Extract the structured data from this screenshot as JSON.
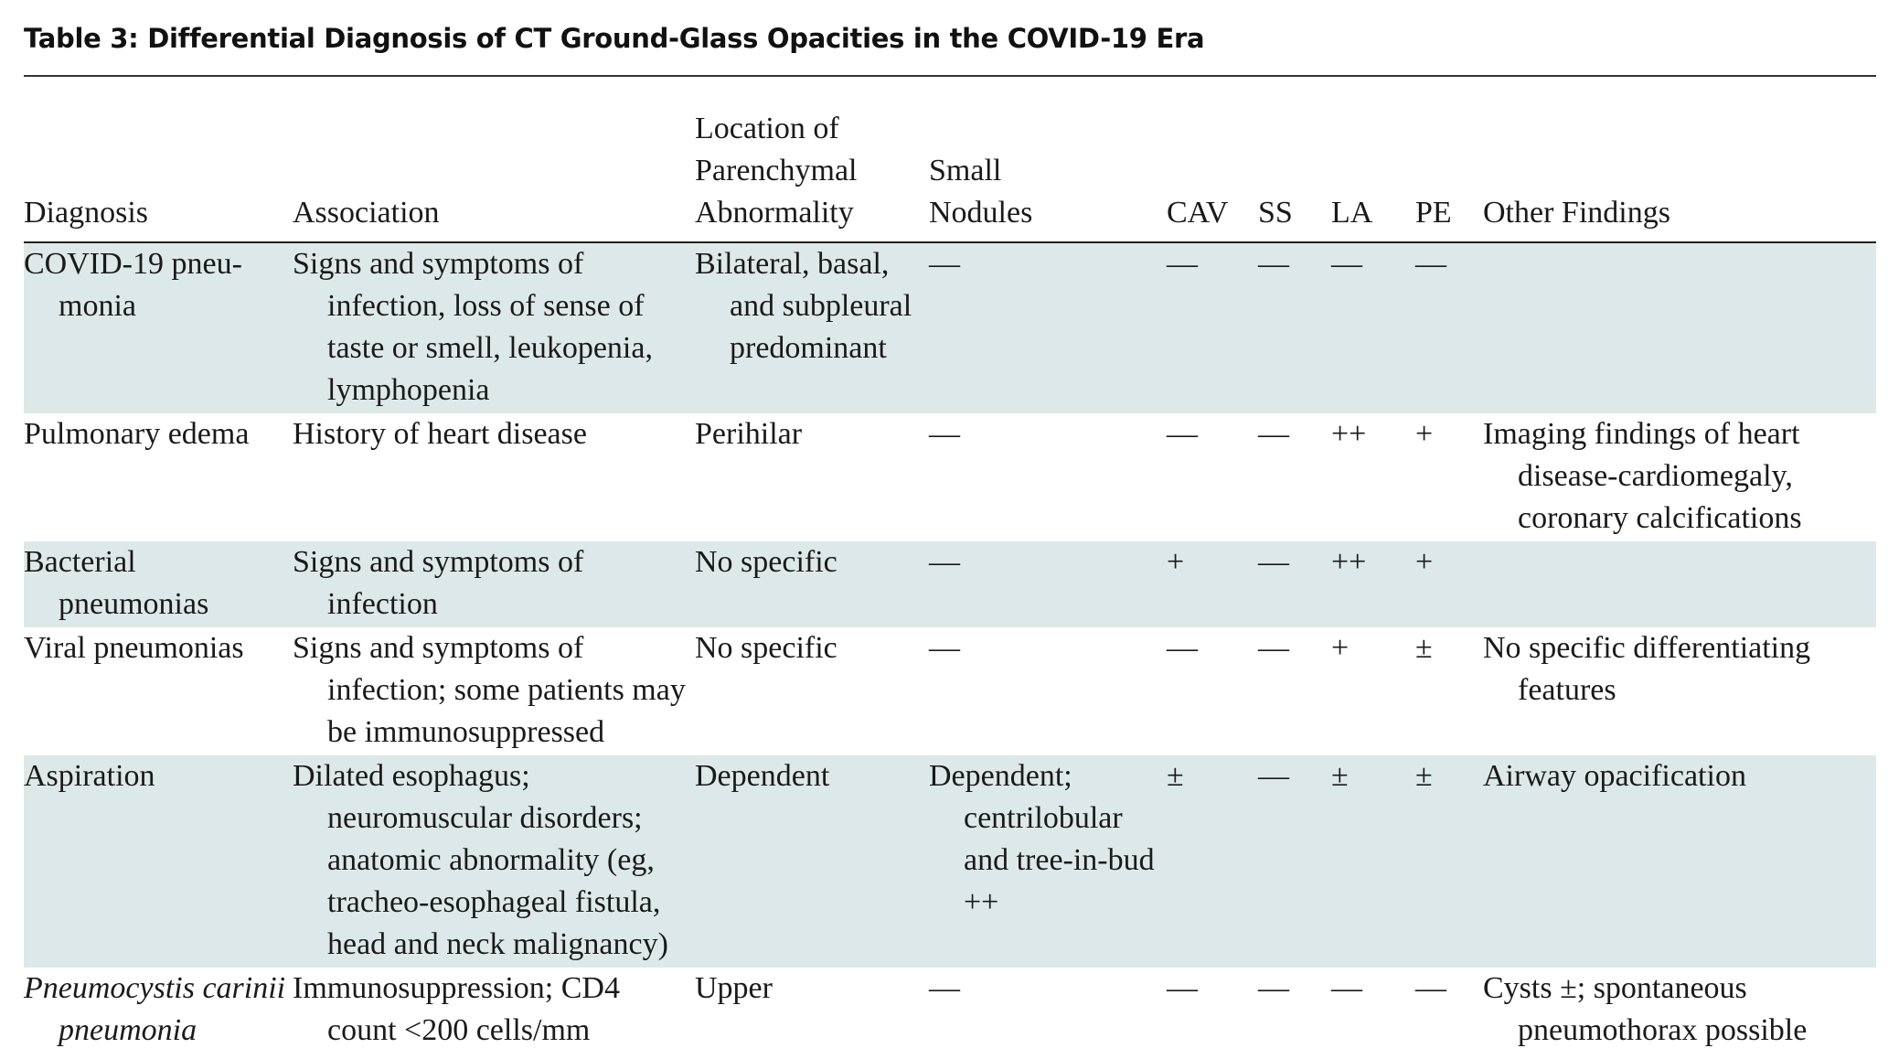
{
  "title": "Table 3: Differential Diagnosis of CT Ground-Glass Opacities in the COVID-19 Era",
  "columns": {
    "diagnosis": "Diagnosis",
    "association": "Association",
    "location_line1": "Location of",
    "location_line2": "Parenchymal",
    "location_line3": "Abnormality",
    "nodules_line1": "Small",
    "nodules_line2": "Nodules",
    "cav": "CAV",
    "ss": "SS",
    "la": "LA",
    "pe": "PE",
    "other": "Other Findings"
  },
  "rows": [
    {
      "diagnosis": "COVID-19 pneu-monia",
      "association": "Signs and symptoms of infection, loss of sense of taste or smell, leukopenia, lymphopenia",
      "location": "Bilateral, basal, and subpleural predominant",
      "nodules": "—",
      "cav": "—",
      "ss": "—",
      "la": "—",
      "pe": "—",
      "other": ""
    },
    {
      "diagnosis": "Pulmonary edema",
      "association": "History of heart disease",
      "location": "Perihilar",
      "nodules": "—",
      "cav": "—",
      "ss": "—",
      "la": "++",
      "pe": "+",
      "other": "Imaging findings of heart disease-cardiomegaly, coronary calcifications"
    },
    {
      "diagnosis": "Bacterial pneumonias",
      "association": "Signs and symptoms of infection",
      "location": "No specific",
      "nodules": "—",
      "cav": "+",
      "ss": "—",
      "la": "++",
      "pe": "+",
      "other": ""
    },
    {
      "diagnosis": "Viral pneumonias",
      "association": "Signs and symptoms of infection; some patients may be immunosuppressed",
      "location": "No specific",
      "nodules": "—",
      "cav": "—",
      "ss": "—",
      "la": "+",
      "pe": "±",
      "other": "No specific differentiating features"
    },
    {
      "diagnosis": "Aspiration",
      "association": "Dilated esophagus; neuromuscular disorders; anatomic abnormality (eg, tracheo-esophageal fistula, head and neck malignancy)",
      "location": "Dependent",
      "nodules": "Dependent; centrilobular and tree-in-bud ++",
      "cav": "±",
      "ss": "—",
      "la": "±",
      "pe": "±",
      "other": "Airway opacification"
    },
    {
      "diagnosis": "Pneumocystis carinii pneumonia",
      "association": "Immunosuppression; CD4 count <200 cells/mm",
      "location": "Upper",
      "nodules": "—",
      "cav": "—",
      "ss": "—",
      "la": "—",
      "pe": "—",
      "other": "Cysts ±; spontaneous pneumothorax possible"
    }
  ]
}
